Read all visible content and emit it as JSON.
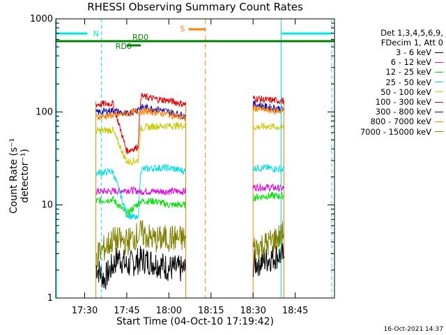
{
  "chart_data": {
    "type": "line",
    "title": "RHESSI Observing Summary Count Rates",
    "xlabel": "Start Time (04-Oct-10 17:19:42)",
    "ylabel": "Count Rate (s⁻¹ detector⁻¹)",
    "xscale": "time (minutes)",
    "xlim": [
      "17:19:42",
      "18:59:00"
    ],
    "yscale": "log",
    "ylim": [
      1,
      1000
    ],
    "xticks": [
      "17:30",
      "17:45",
      "18:00",
      "18:15",
      "18:30",
      "18:45"
    ],
    "yticks": [
      "1",
      "10",
      "100",
      "1000"
    ],
    "legend_header": [
      "Det 1,3,4,5,6,9,",
      "FDecim 1, Att 0"
    ],
    "legend_position": "right",
    "series": [
      {
        "name": "3 - 6 keV",
        "color": "#000000",
        "segments": [
          [
            [
              "17:34",
              2.2
            ],
            [
              "17:37",
              1.6
            ],
            [
              "17:42",
              2.8
            ],
            [
              "17:45",
              2.2
            ],
            [
              "17:50",
              2.6
            ],
            [
              "17:55",
              2.4
            ],
            [
              "18:00",
              2.1
            ],
            [
              "18:06",
              2.0
            ]
          ],
          [
            [
              "18:30",
              2.3
            ],
            [
              "18:35",
              2.6
            ],
            [
              "18:39",
              2.9
            ],
            [
              "18:41",
              2.8
            ]
          ]
        ]
      },
      {
        "name": "6 - 12 keV",
        "color": "#e000e0",
        "segments": [
          [
            [
              "17:34",
              14
            ],
            [
              "17:40",
              14
            ],
            [
              "17:45",
              14.5
            ],
            [
              "17:50",
              14
            ],
            [
              "17:55",
              14
            ],
            [
              "18:00",
              14
            ],
            [
              "18:06",
              14
            ]
          ],
          [
            [
              "18:30",
              15.5
            ],
            [
              "18:35",
              15.5
            ],
            [
              "18:41",
              15
            ]
          ]
        ]
      },
      {
        "name": "12 - 25 keV",
        "color": "#00e000",
        "segments": [
          [
            [
              "17:34",
              11
            ],
            [
              "17:40",
              11.5
            ],
            [
              "17:45",
              8
            ],
            [
              "17:50",
              11
            ],
            [
              "17:55",
              11
            ],
            [
              "18:00",
              10
            ],
            [
              "18:06",
              10
            ]
          ],
          [
            [
              "18:30",
              12
            ],
            [
              "18:35",
              12.5
            ],
            [
              "18:41",
              12.5
            ]
          ]
        ]
      },
      {
        "name": "25 - 50 keV",
        "color": "#00e0e0",
        "segments": [
          [
            [
              "17:34",
              22
            ],
            [
              "17:40",
              23
            ],
            [
              "17:45",
              8
            ],
            [
              "17:49",
              7
            ],
            [
              "17:50",
              24
            ],
            [
              "17:55",
              25
            ],
            [
              "18:00",
              25
            ],
            [
              "18:06",
              23
            ]
          ],
          [
            [
              "18:30",
              25
            ],
            [
              "18:35",
              25
            ],
            [
              "18:41",
              24
            ]
          ]
        ]
      },
      {
        "name": "50 - 100 keV",
        "color": "#c8c800",
        "segments": [
          [
            [
              "17:34",
              62
            ],
            [
              "17:40",
              64
            ],
            [
              "17:45",
              29
            ],
            [
              "17:49",
              30
            ],
            [
              "17:50",
              67
            ],
            [
              "17:55",
              70
            ],
            [
              "18:00",
              71
            ],
            [
              "18:06",
              71
            ]
          ],
          [
            [
              "18:30",
              68
            ],
            [
              "18:35",
              70
            ],
            [
              "18:41",
              68
            ]
          ]
        ]
      },
      {
        "name": "100 - 300 keV",
        "color": "#e00000",
        "segments": [
          [
            [
              "17:34",
              120
            ],
            [
              "17:40",
              124
            ],
            [
              "17:45",
              38
            ],
            [
              "17:49",
              42
            ],
            [
              "17:50",
              148
            ],
            [
              "17:55",
              138
            ],
            [
              "18:00",
              132
            ],
            [
              "18:06",
              120
            ]
          ],
          [
            [
              "18:30",
              140
            ],
            [
              "18:35",
              134
            ],
            [
              "18:41",
              132
            ]
          ]
        ]
      },
      {
        "name": "300 - 800 keV",
        "color": "#0000c0",
        "segments": [
          [
            [
              "17:34",
              98
            ],
            [
              "17:40",
              104
            ],
            [
              "17:45",
              94
            ],
            [
              "17:50",
              112
            ],
            [
              "17:55",
              108
            ],
            [
              "18:00",
              100
            ],
            [
              "18:06",
              90
            ]
          ],
          [
            [
              "18:30",
              122
            ],
            [
              "18:35",
              112
            ],
            [
              "18:41",
              108
            ]
          ]
        ]
      },
      {
        "name": "800 - 7000 keV",
        "color": "#ff8000",
        "segments": [
          [
            [
              "17:34",
              88
            ],
            [
              "17:40",
              92
            ],
            [
              "17:45",
              96
            ],
            [
              "17:50",
              102
            ],
            [
              "17:55",
              100
            ],
            [
              "18:00",
              94
            ],
            [
              "18:06",
              85
            ]
          ],
          [
            [
              "18:30",
              110
            ],
            [
              "18:35",
              104
            ],
            [
              "18:41",
              102
            ]
          ]
        ]
      },
      {
        "name": "7000 - 15000 keV",
        "color": "#808000",
        "segments": [
          [
            [
              "17:34",
              2.8
            ],
            [
              "17:40",
              4.2
            ],
            [
              "17:45",
              4.0
            ],
            [
              "17:50",
              5.0
            ],
            [
              "17:55",
              4.2
            ],
            [
              "18:00",
              4.4
            ],
            [
              "18:06",
              4.3
            ]
          ],
          [
            [
              "18:30",
              3.4
            ],
            [
              "18:35",
              3.8
            ],
            [
              "18:41",
              4.9
            ]
          ]
        ]
      }
    ],
    "markers": [
      {
        "label": "N",
        "color": "#00e5e5"
      },
      {
        "label": "S",
        "color": "#ff8000"
      },
      {
        "label": "RD0",
        "color": "#008000"
      },
      {
        "label": "RD6",
        "color": "#008000"
      }
    ]
  },
  "timestamp": "16-Oct-2021 14:37"
}
